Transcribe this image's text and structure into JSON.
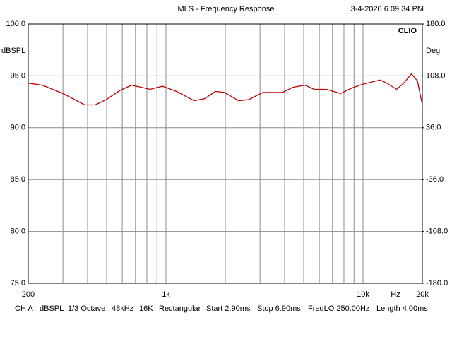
{
  "chart_data": {
    "type": "line",
    "title": "MLS - Frequency Response",
    "timestamp": "3-4-2020 6.09.34 PM",
    "brand": "CLIO",
    "ylabel": "dBSPL",
    "y2label": "Deg",
    "xunit": "Hz",
    "xscale": "log",
    "grid": true,
    "color": "#c00000",
    "x": [
      200,
      236,
      300,
      387,
      437,
      496,
      585,
      668,
      748,
      829,
      960,
      1130,
      1390,
      1570,
      1780,
      1980,
      2340,
      2620,
      3100,
      3900,
      4420,
      5080,
      5650,
      6520,
      7690,
      8710,
      10000,
      12200,
      13200,
      14800,
      16100,
      17600,
      18900,
      20000
    ],
    "values": [
      94.3,
      94.1,
      93.3,
      92.2,
      92.2,
      92.7,
      93.6,
      94.1,
      93.9,
      93.7,
      94.0,
      93.5,
      92.6,
      92.8,
      93.5,
      93.4,
      92.6,
      92.7,
      93.4,
      93.4,
      93.9,
      94.1,
      93.7,
      93.7,
      93.3,
      93.8,
      94.2,
      94.6,
      94.3,
      93.7,
      94.3,
      95.2,
      94.5,
      92.2
    ],
    "xlim": [
      200,
      20000
    ],
    "xticks": [
      {
        "value": 200,
        "label": "200"
      },
      {
        "value": 1000,
        "label": "1k"
      },
      {
        "value": 10000,
        "label": "10k"
      },
      {
        "value": 20000,
        "label": "20k"
      }
    ],
    "xminor": [
      300,
      400,
      500,
      600,
      700,
      800,
      900,
      2000,
      3000,
      4000,
      5000,
      6000,
      7000,
      8000,
      9000
    ],
    "ylim": [
      75,
      100
    ],
    "yticks": [
      {
        "value": 75,
        "label": "75.0"
      },
      {
        "value": 80,
        "label": "80.0"
      },
      {
        "value": 85,
        "label": "85.0"
      },
      {
        "value": 90,
        "label": "90.0"
      },
      {
        "value": 95,
        "label": "95.0"
      },
      {
        "value": 100,
        "label": "100.0"
      }
    ],
    "y2lim": [
      -180,
      180
    ],
    "y2ticks": [
      {
        "value": -180,
        "label": "-180.0"
      },
      {
        "value": -108,
        "label": "-108.0"
      },
      {
        "value": -36,
        "label": "-36.0"
      },
      {
        "value": 36,
        "label": "36.0"
      },
      {
        "value": 108,
        "label": "108.0"
      },
      {
        "value": 180,
        "label": "180.0"
      }
    ],
    "status": [
      "CH A",
      "dBSPL",
      "1/3 Octave",
      "48kHz",
      "16K",
      "Rectangular",
      "Start 2.90ms",
      "Stop 6.90ms",
      "FreqLO 250.00Hz",
      "Length 4.00ms"
    ]
  }
}
